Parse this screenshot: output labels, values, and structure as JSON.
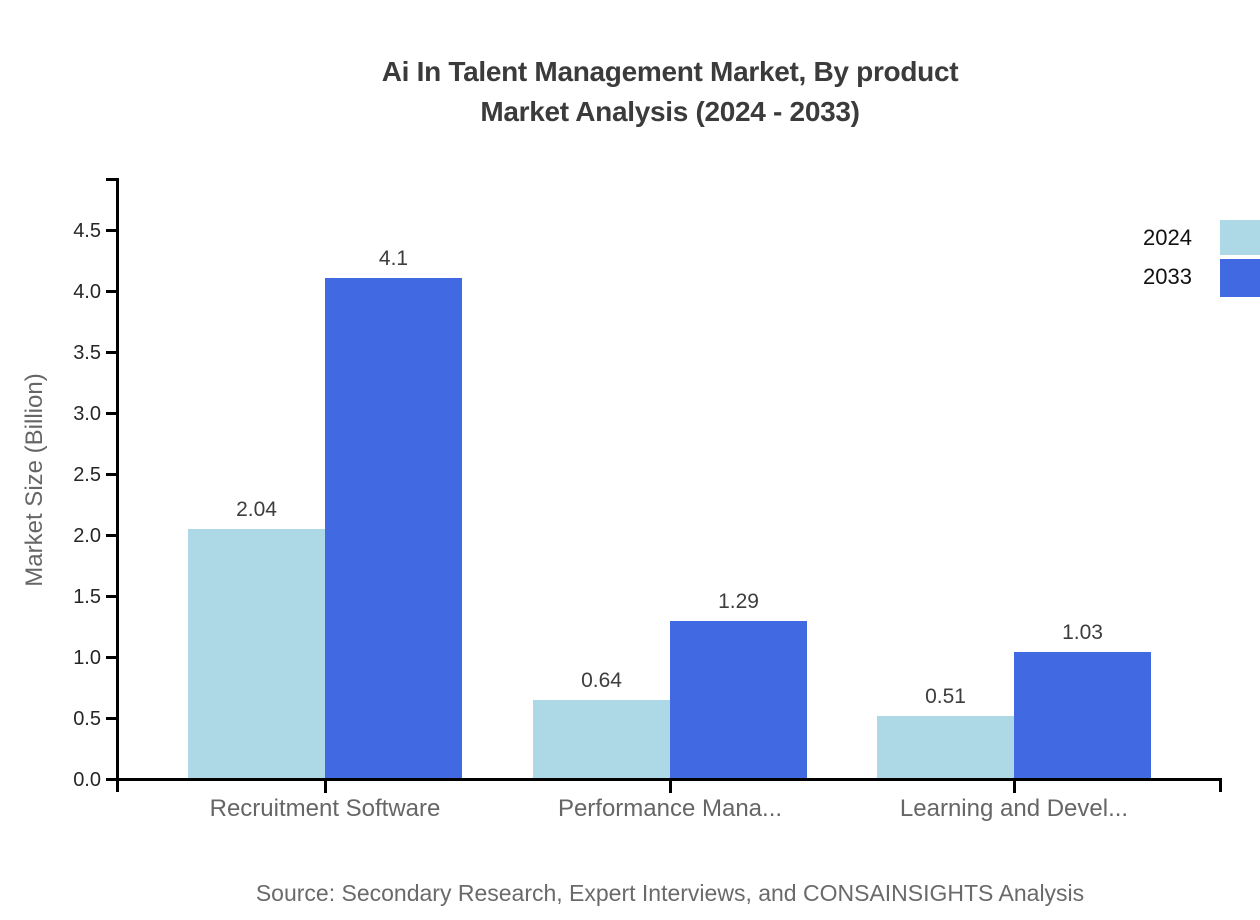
{
  "title": {
    "line1": "Ai In Talent Management Market, By product",
    "line2": "Market Analysis (2024 - 2033)"
  },
  "chart_data": {
    "type": "bar",
    "title": "Ai In Talent Management Market, By product Market Analysis (2024 - 2033)",
    "categories": [
      "Recruitment Software",
      "Performance Mana...",
      "Learning and Devel..."
    ],
    "series": [
      {
        "name": "2024",
        "color": "#ADD8E6",
        "values": [
          2.04,
          0.64,
          0.51
        ]
      },
      {
        "name": "2033",
        "color": "#4169E1",
        "values": [
          4.1,
          1.29,
          1.03
        ]
      }
    ],
    "ylabel": "Market Size (Billion)",
    "xlabel": "",
    "ylim": [
      0,
      4.5
    ],
    "ytick_step": 0.5,
    "yticks": [
      "0.0",
      "0.5",
      "1.0",
      "1.5",
      "2.0",
      "2.5",
      "3.0",
      "3.5",
      "4.0",
      "4.5"
    ],
    "grid": false,
    "legend_position": "top-right",
    "value_labels_shown": true
  },
  "legend": {
    "items": [
      {
        "label": "2024",
        "color": "#ADD8E6"
      },
      {
        "label": "2033",
        "color": "#4169E1"
      }
    ]
  },
  "source": {
    "text": "Source: Secondary Research, Expert Interviews, and CONSAINSIGHTS Analysis"
  },
  "colors": {
    "series_2024": "#ADD8E6",
    "series_2033": "#4169E1",
    "axis": "#000000",
    "title_text": "#3b3b3b",
    "category_text": "#666666",
    "tick_text": "#262626",
    "value_text": "#3d3d3d",
    "legend_text": "#111111",
    "source_text": "#6a6a6a"
  }
}
